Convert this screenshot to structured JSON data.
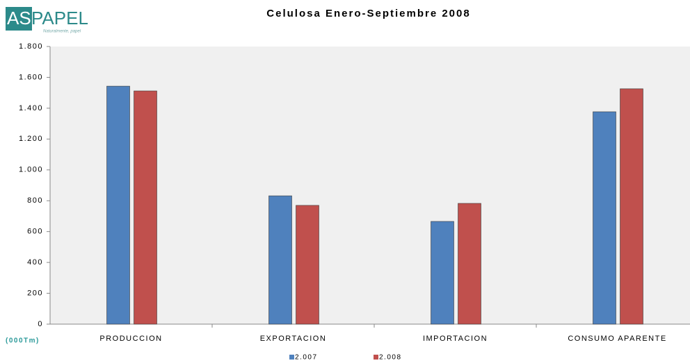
{
  "logo": {
    "left": "AS",
    "right": "PAPEL",
    "tagline": "Naturalmente, papel"
  },
  "chart_data": {
    "type": "bar",
    "title": "Celulosa Enero-Septiembre 2008",
    "unit_label": "(000Tm)",
    "categories": [
      "PRODUCCION",
      "EXPORTACION",
      "IMPORTACION",
      "CONSUMO APARENTE"
    ],
    "series": [
      {
        "name": "2.007",
        "color": "#4f81bd",
        "values": [
          1543,
          832,
          666,
          1377
        ]
      },
      {
        "name": "2.008",
        "color": "#c0504d",
        "values": [
          1512,
          770,
          783,
          1526
        ]
      }
    ],
    "ylim": [
      0,
      1800
    ],
    "yticks": [
      0,
      200,
      400,
      600,
      800,
      {
        "value": 1000,
        "label": "1.000"
      },
      {
        "value": 1200,
        "label": "1.200"
      },
      {
        "value": 1400,
        "label": "1.400"
      },
      {
        "value": 1600,
        "label": "1.600"
      },
      {
        "value": 1800,
        "label": "1.800"
      }
    ],
    "grid": false
  }
}
